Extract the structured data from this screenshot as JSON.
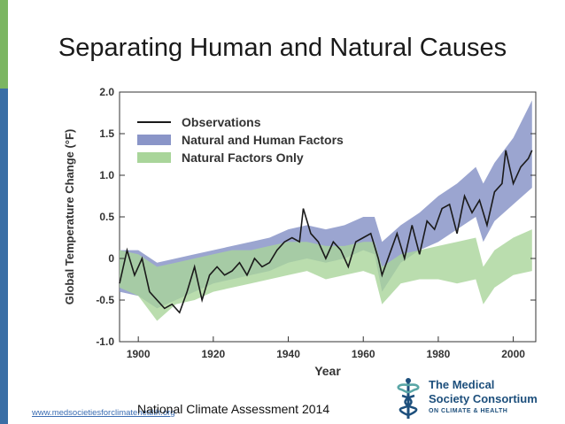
{
  "slide": {
    "title": "Separating Human and Natural Causes",
    "caption": "National Climate Assessment 2014",
    "website": "www.medsocietiesforclimatehealth.org"
  },
  "logo": {
    "line1": "The Medical",
    "line2": "Society Consortium",
    "line3": "ON CLIMATE & HEALTH",
    "icon": "caduceus-icon",
    "color": "#1d4f7c"
  },
  "colors": {
    "observations": "#1a1a1a",
    "natural_and_human": "#8a95c8",
    "natural_only": "#a9d59a",
    "overlap": "#7fa69a",
    "accent_green": "#7bb661",
    "accent_blue": "#3a6ea5"
  },
  "chart_data": {
    "type": "line",
    "title": "",
    "xlabel": "Year",
    "ylabel": "Global Temperature Change (°F)",
    "xlim": [
      1895,
      2006
    ],
    "ylim": [
      -1.0,
      2.0
    ],
    "xticks": [
      1900,
      1920,
      1940,
      1960,
      1980,
      2000
    ],
    "yticks": [
      "2.0",
      "1.5",
      "1.0",
      "0.5",
      "0",
      "-0.5",
      "-1.0"
    ],
    "legend": [
      "Observations",
      "Natural and Human Factors",
      "Natural Factors Only"
    ],
    "legend_position": "top-left",
    "observations": {
      "name": "Observations",
      "x": [
        1895,
        1897,
        1899,
        1901,
        1903,
        1905,
        1907,
        1909,
        1911,
        1913,
        1915,
        1917,
        1919,
        1921,
        1923,
        1925,
        1927,
        1929,
        1931,
        1933,
        1935,
        1937,
        1939,
        1941,
        1943,
        1944,
        1946,
        1948,
        1950,
        1952,
        1954,
        1956,
        1958,
        1960,
        1962,
        1964,
        1965,
        1967,
        1969,
        1971,
        1973,
        1975,
        1977,
        1979,
        1981,
        1983,
        1985,
        1987,
        1989,
        1991,
        1993,
        1995,
        1997,
        1998,
        2000,
        2002,
        2004,
        2005
      ],
      "y": [
        -0.3,
        0.1,
        -0.2,
        0.0,
        -0.4,
        -0.5,
        -0.6,
        -0.55,
        -0.65,
        -0.4,
        -0.1,
        -0.5,
        -0.2,
        -0.1,
        -0.2,
        -0.15,
        -0.05,
        -0.2,
        0.0,
        -0.1,
        -0.05,
        0.1,
        0.2,
        0.25,
        0.2,
        0.6,
        0.3,
        0.2,
        0.0,
        0.2,
        0.1,
        -0.1,
        0.2,
        0.25,
        0.3,
        0.0,
        -0.2,
        0.05,
        0.3,
        0.0,
        0.4,
        0.05,
        0.45,
        0.35,
        0.6,
        0.65,
        0.3,
        0.75,
        0.55,
        0.7,
        0.4,
        0.8,
        0.9,
        1.3,
        0.9,
        1.1,
        1.2,
        1.3
      ]
    },
    "natural_and_human": {
      "name": "Natural and Human Factors",
      "x": [
        1895,
        1900,
        1905,
        1910,
        1915,
        1920,
        1925,
        1930,
        1935,
        1940,
        1945,
        1950,
        1955,
        1960,
        1963,
        1965,
        1970,
        1975,
        1980,
        1985,
        1990,
        1992,
        1995,
        2000,
        2005
      ],
      "upper": [
        0.1,
        0.1,
        -0.05,
        0.0,
        0.05,
        0.1,
        0.15,
        0.2,
        0.25,
        0.35,
        0.4,
        0.35,
        0.4,
        0.5,
        0.5,
        0.2,
        0.4,
        0.55,
        0.75,
        0.9,
        1.1,
        0.9,
        1.15,
        1.45,
        1.9
      ],
      "lower": [
        -0.4,
        -0.45,
        -0.6,
        -0.5,
        -0.4,
        -0.3,
        -0.25,
        -0.2,
        -0.15,
        -0.05,
        0.0,
        -0.05,
        0.0,
        0.1,
        0.05,
        -0.4,
        -0.05,
        0.1,
        0.2,
        0.35,
        0.5,
        0.2,
        0.45,
        0.65,
        0.85
      ]
    },
    "natural_only": {
      "name": "Natural Factors Only",
      "x": [
        1895,
        1900,
        1905,
        1910,
        1915,
        1920,
        1925,
        1930,
        1935,
        1940,
        1945,
        1950,
        1955,
        1960,
        1963,
        1965,
        1970,
        1975,
        1980,
        1985,
        1990,
        1992,
        1995,
        2000,
        2005
      ],
      "upper": [
        0.1,
        0.05,
        -0.1,
        -0.05,
        0.0,
        0.05,
        0.1,
        0.1,
        0.15,
        0.2,
        0.2,
        0.15,
        0.15,
        0.2,
        0.2,
        -0.1,
        0.05,
        0.1,
        0.15,
        0.2,
        0.25,
        -0.1,
        0.1,
        0.25,
        0.35
      ],
      "lower": [
        -0.35,
        -0.45,
        -0.75,
        -0.55,
        -0.5,
        -0.4,
        -0.35,
        -0.3,
        -0.25,
        -0.2,
        -0.15,
        -0.25,
        -0.2,
        -0.15,
        -0.2,
        -0.55,
        -0.3,
        -0.25,
        -0.25,
        -0.3,
        -0.25,
        -0.55,
        -0.35,
        -0.2,
        -0.15
      ]
    }
  }
}
